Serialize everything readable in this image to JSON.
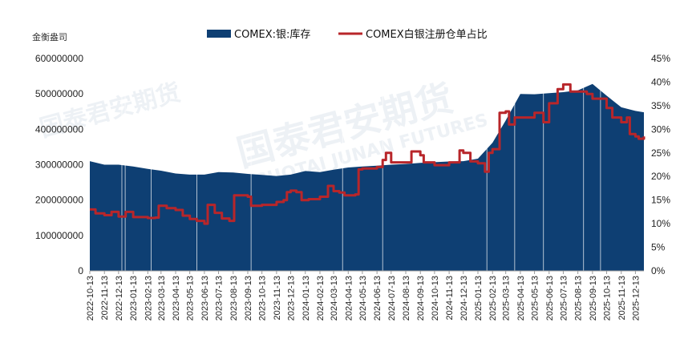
{
  "chart_data": {
    "type": "area",
    "source_label": "金衡盎司",
    "colors": {
      "area": "#0e3f73",
      "line": "#b8262a",
      "watermark": "#d9e1ea"
    },
    "watermark": {
      "cn": "国泰君安期货",
      "en": "GUOTAI JUNAN FUTURES"
    },
    "legend": {
      "position": "top",
      "area_label": "COMEX:银:库存",
      "line_label": "COMEX白银注册仓单占比"
    },
    "y_left": {
      "min": 0,
      "max": 600000000,
      "ticks": [
        "0",
        "100000000",
        "200000000",
        "300000000",
        "400000000",
        "500000000",
        "600000000"
      ]
    },
    "y_right": {
      "min": 0,
      "max": 45,
      "ticks": [
        "0%",
        "5%",
        "10%",
        "15%",
        "20%",
        "25%",
        "30%",
        "35%",
        "40%",
        "45%"
      ]
    },
    "x_ticks": [
      "2022-10-13",
      "2022-11-13",
      "2022-12-13",
      "2023-01-13",
      "2023-02-13",
      "2023-03-13",
      "2023-04-13",
      "2023-05-13",
      "2023-06-13",
      "2023-07-13",
      "2023-08-13",
      "2023-09-13",
      "2023-10-13",
      "2023-11-13",
      "2023-12-13",
      "2024-01-13",
      "2024-02-13",
      "2024-03-13",
      "2024-04-13",
      "2024-05-13",
      "2024-06-13",
      "2024-07-13",
      "2024-08-13",
      "2024-09-13",
      "2024-10-13",
      "2024-11-13",
      "2024-12-13",
      "2025-01-13",
      "2025-02-13",
      "2025-03-13",
      "2025-04-13",
      "2025-05-13",
      "2025-06-13",
      "2025-07-13",
      "2025-08-13",
      "2025-09-13",
      "2025-10-13",
      "2025-11-13",
      "2025-12-13"
    ],
    "inventory_series": {
      "name": "COMEX:银:库存",
      "points": [
        [
          "2022-10-13",
          310000000
        ],
        [
          "2022-11-13",
          300000000
        ],
        [
          "2022-12-13",
          300000000
        ],
        [
          "2023-01-13",
          295000000
        ],
        [
          "2023-02-13",
          288000000
        ],
        [
          "2023-03-13",
          283000000
        ],
        [
          "2023-04-13",
          275000000
        ],
        [
          "2023-05-13",
          272000000
        ],
        [
          "2023-06-13",
          272000000
        ],
        [
          "2023-07-13",
          279000000
        ],
        [
          "2023-08-13",
          278000000
        ],
        [
          "2023-09-13",
          274000000
        ],
        [
          "2023-10-13",
          271000000
        ],
        [
          "2023-11-13",
          268000000
        ],
        [
          "2023-12-13",
          272000000
        ],
        [
          "2024-01-13",
          282000000
        ],
        [
          "2024-02-13",
          279000000
        ],
        [
          "2024-03-13",
          286000000
        ],
        [
          "2024-04-13",
          292000000
        ],
        [
          "2024-05-13",
          295000000
        ],
        [
          "2024-06-13",
          297000000
        ],
        [
          "2024-07-13",
          300000000
        ],
        [
          "2024-08-13",
          302000000
        ],
        [
          "2024-09-13",
          305000000
        ],
        [
          "2024-10-13",
          307000000
        ],
        [
          "2024-11-13",
          309000000
        ],
        [
          "2024-12-13",
          310000000
        ],
        [
          "2025-01-13",
          317000000
        ],
        [
          "2025-02-13",
          362000000
        ],
        [
          "2025-03-13",
          425000000
        ],
        [
          "2025-04-13",
          500000000
        ],
        [
          "2025-05-13",
          499000000
        ],
        [
          "2025-06-13",
          502000000
        ],
        [
          "2025-07-13",
          505000000
        ],
        [
          "2025-08-13",
          510000000
        ],
        [
          "2025-09-13",
          528000000
        ],
        [
          "2025-10-13",
          495000000
        ],
        [
          "2025-11-13",
          462000000
        ],
        [
          "2025-12-13",
          452000000
        ],
        [
          "2025-12-31",
          448000000
        ]
      ]
    },
    "ratio_series": {
      "name": "COMEX白银注册仓单占比",
      "points": [
        [
          "2022-10-13",
          13.0
        ],
        [
          "2022-10-25",
          12.2
        ],
        [
          "2022-11-13",
          11.8
        ],
        [
          "2022-11-28",
          12.5
        ],
        [
          "2022-12-13",
          11.5
        ],
        [
          "2022-12-28",
          12.5
        ],
        [
          "2023-01-13",
          11.4
        ],
        [
          "2023-02-13",
          11.2
        ],
        [
          "2023-03-01",
          11.3
        ],
        [
          "2023-03-08",
          13.8
        ],
        [
          "2023-03-25",
          13.3
        ],
        [
          "2023-04-13",
          12.9
        ],
        [
          "2023-04-28",
          11.7
        ],
        [
          "2023-05-13",
          11.0
        ],
        [
          "2023-05-28",
          10.6
        ],
        [
          "2023-06-13",
          10.0
        ],
        [
          "2023-06-20",
          14.0
        ],
        [
          "2023-07-05",
          12.3
        ],
        [
          "2023-07-20",
          11.1
        ],
        [
          "2023-08-05",
          10.6
        ],
        [
          "2023-08-15",
          16.0
        ],
        [
          "2023-09-13",
          15.7
        ],
        [
          "2023-09-20",
          13.8
        ],
        [
          "2023-10-13",
          14.0
        ],
        [
          "2023-11-13",
          14.6
        ],
        [
          "2023-11-28",
          15.0
        ],
        [
          "2023-12-05",
          16.7
        ],
        [
          "2023-12-13",
          17.0
        ],
        [
          "2023-12-25",
          16.7
        ],
        [
          "2024-01-05",
          15.0
        ],
        [
          "2024-01-20",
          15.2
        ],
        [
          "2024-02-13",
          15.7
        ],
        [
          "2024-03-01",
          18.0
        ],
        [
          "2024-03-13",
          16.9
        ],
        [
          "2024-03-25",
          16.6
        ],
        [
          "2024-04-05",
          16.0
        ],
        [
          "2024-04-13",
          16.0
        ],
        [
          "2024-04-28",
          16.2
        ],
        [
          "2024-05-05",
          21.5
        ],
        [
          "2024-05-13",
          21.7
        ],
        [
          "2024-06-13",
          22.0
        ],
        [
          "2024-06-25",
          23.5
        ],
        [
          "2024-07-02",
          25.0
        ],
        [
          "2024-07-13",
          23.0
        ],
        [
          "2024-08-13",
          23.0
        ],
        [
          "2024-08-25",
          25.3
        ],
        [
          "2024-09-13",
          24.5
        ],
        [
          "2024-09-20",
          23.0
        ],
        [
          "2024-10-13",
          22.4
        ],
        [
          "2024-11-13",
          23.0
        ],
        [
          "2024-12-05",
          25.5
        ],
        [
          "2024-12-13",
          25.0
        ],
        [
          "2024-12-28",
          23.2
        ],
        [
          "2025-01-13",
          22.8
        ],
        [
          "2025-01-28",
          21.0
        ],
        [
          "2025-02-05",
          25.0
        ],
        [
          "2025-02-13",
          25.8
        ],
        [
          "2025-02-28",
          33.5
        ],
        [
          "2025-03-13",
          33.8
        ],
        [
          "2025-03-20",
          31.0
        ],
        [
          "2025-04-01",
          32.5
        ],
        [
          "2025-04-13",
          32.5
        ],
        [
          "2025-05-13",
          33.5
        ],
        [
          "2025-06-01",
          31.5
        ],
        [
          "2025-06-13",
          35.5
        ],
        [
          "2025-07-01",
          38.5
        ],
        [
          "2025-07-13",
          39.5
        ],
        [
          "2025-07-28",
          38.0
        ],
        [
          "2025-08-13",
          38.0
        ],
        [
          "2025-09-01",
          37.5
        ],
        [
          "2025-09-13",
          36.5
        ],
        [
          "2025-10-13",
          34.5
        ],
        [
          "2025-10-25",
          32.5
        ],
        [
          "2025-11-13",
          31.5
        ],
        [
          "2025-11-25",
          32.5
        ],
        [
          "2025-12-01",
          29.0
        ],
        [
          "2025-12-13",
          28.5
        ],
        [
          "2025-12-20",
          28.0
        ],
        [
          "2025-12-31",
          28.5
        ]
      ]
    }
  }
}
